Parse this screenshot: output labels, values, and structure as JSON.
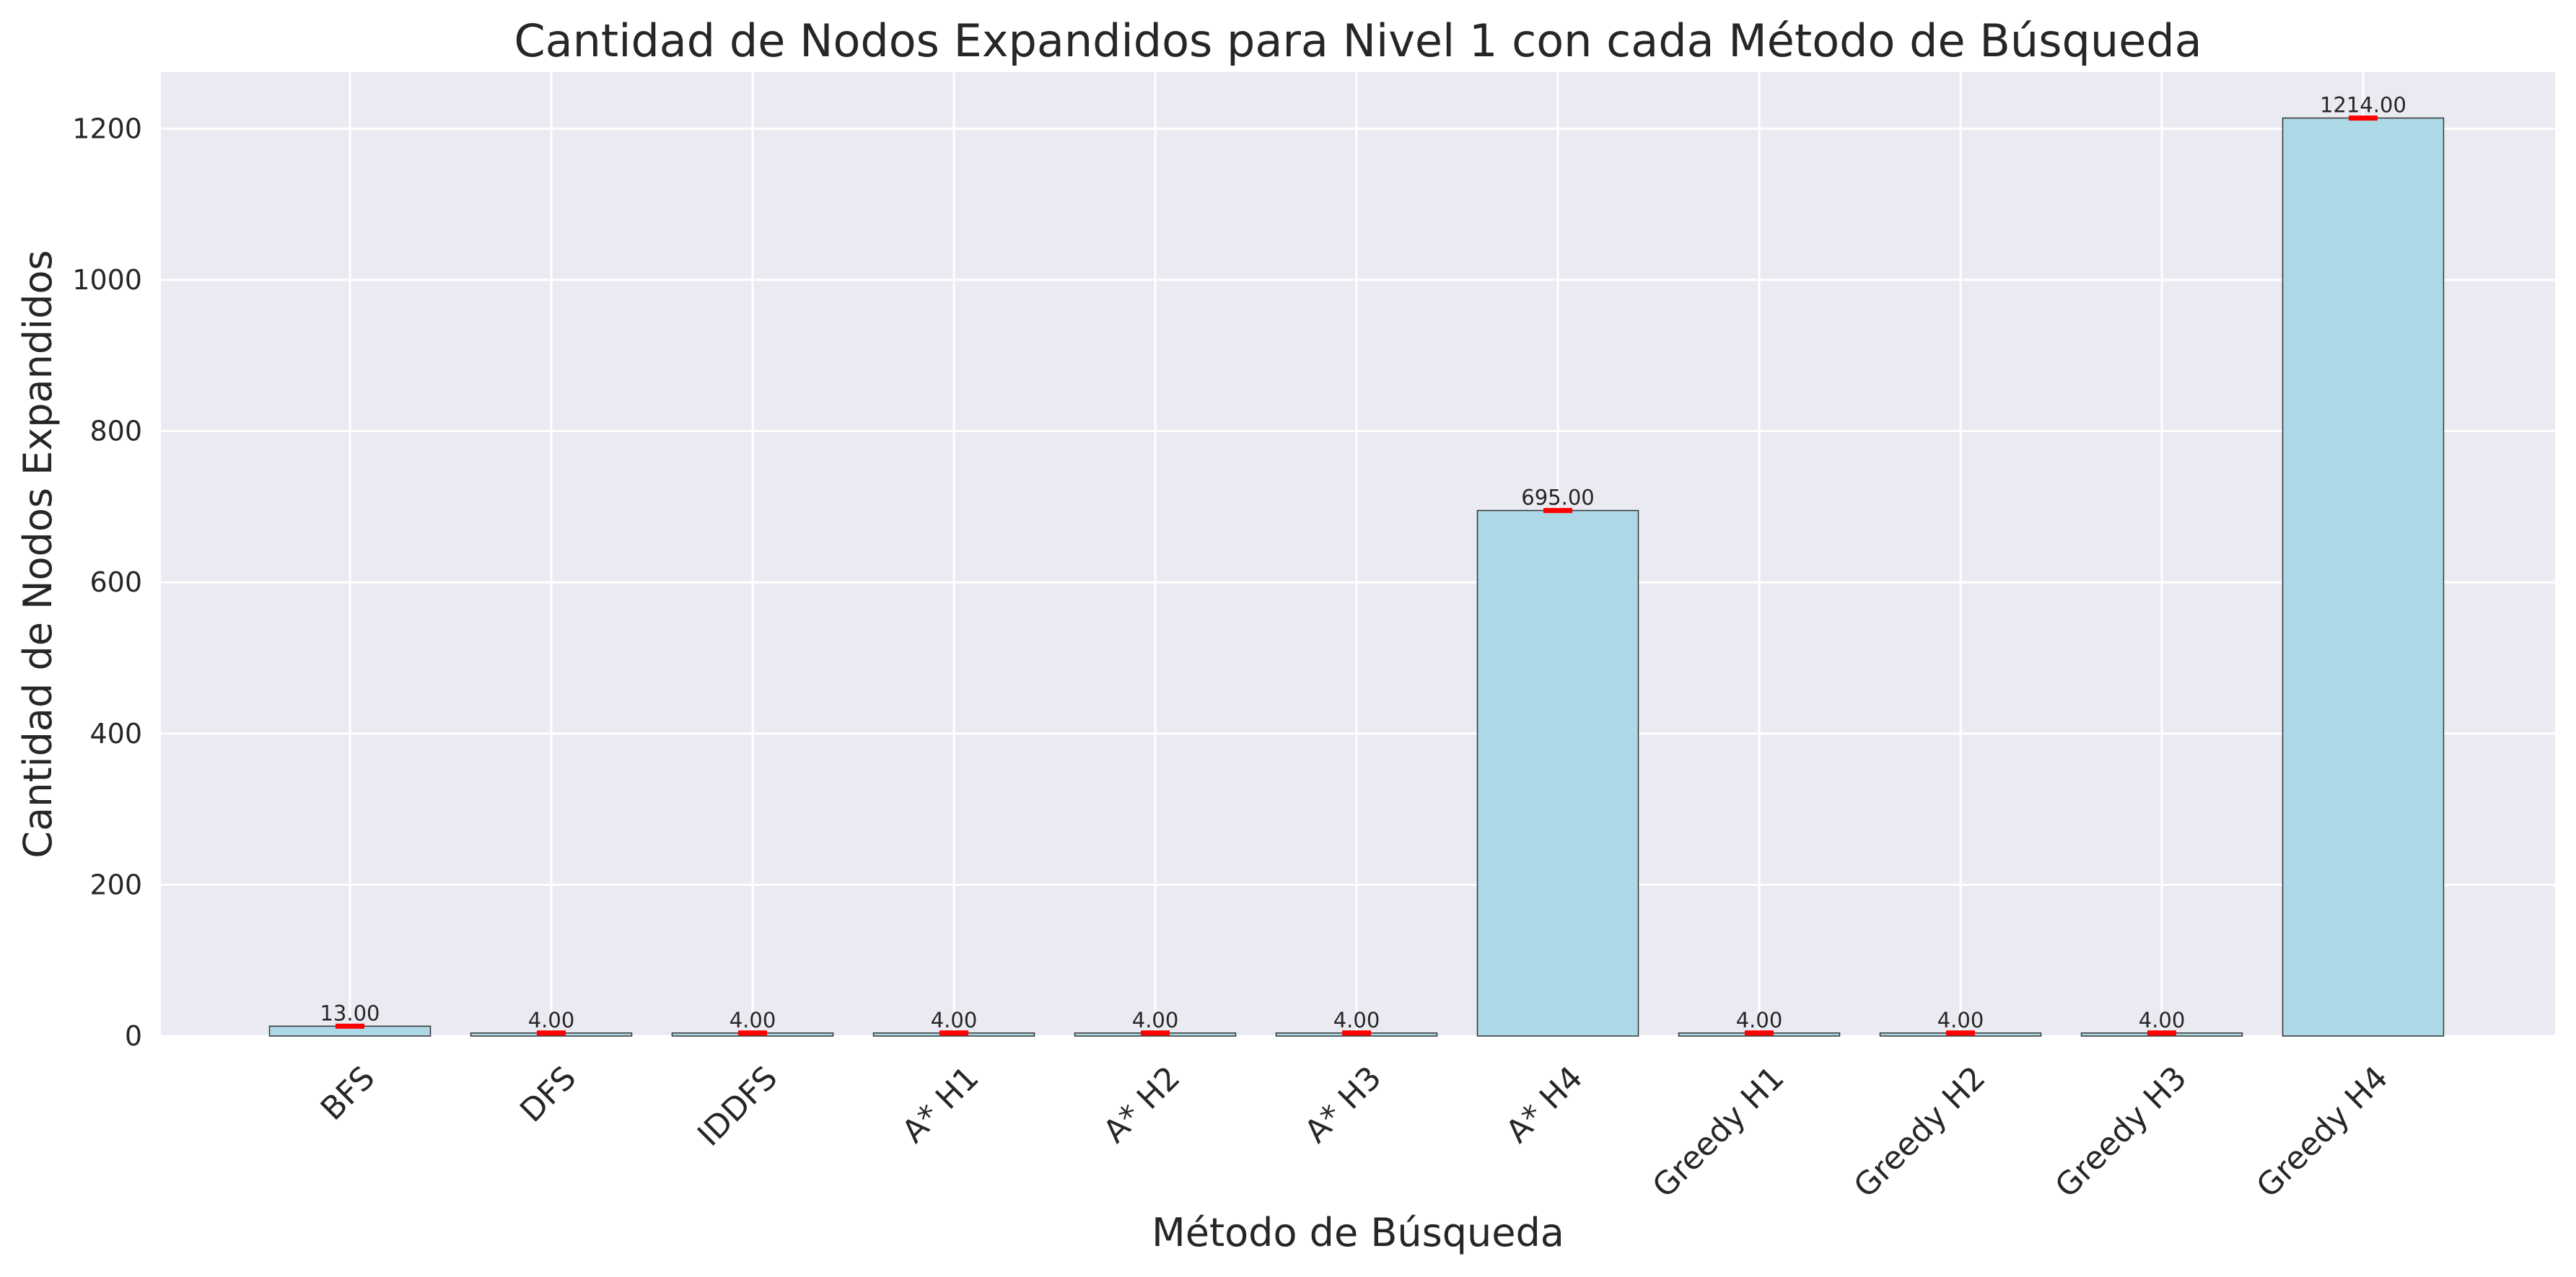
{
  "chart_data": {
    "type": "bar",
    "title": "Cantidad de Nodos Expandidos  para Nivel 1 con cada Método de Búsqueda",
    "xlabel": "Método de Búsqueda",
    "ylabel": "Cantidad de Nodos Expandidos",
    "categories": [
      "BFS",
      "DFS",
      "IDDFS",
      "A* H1",
      "A* H2",
      "A* H3",
      "A* H4",
      "Greedy H1",
      "Greedy H2",
      "Greedy H3",
      "Greedy H4"
    ],
    "values": [
      13,
      4,
      4,
      4,
      4,
      4,
      695,
      4,
      4,
      4,
      1214
    ],
    "data_labels": [
      "13.00",
      "4.00",
      "4.00",
      "4.00",
      "4.00",
      "4.00",
      "695.00",
      "4.00",
      "4.00",
      "4.00",
      "1214.00"
    ],
    "error_bars": [
      0,
      0,
      0,
      0,
      0,
      0,
      0,
      0,
      0,
      0,
      0
    ],
    "y_ticks": [
      0,
      200,
      400,
      600,
      800,
      1000,
      1200
    ],
    "ylim": [
      0,
      1274.7
    ],
    "grid": true,
    "colors": {
      "bar_fill": "#add8e6",
      "bar_edge": "#333333",
      "error_bar": "#ff0000",
      "plot_background": "#eaeaf2",
      "grid": "#ffffff"
    }
  }
}
